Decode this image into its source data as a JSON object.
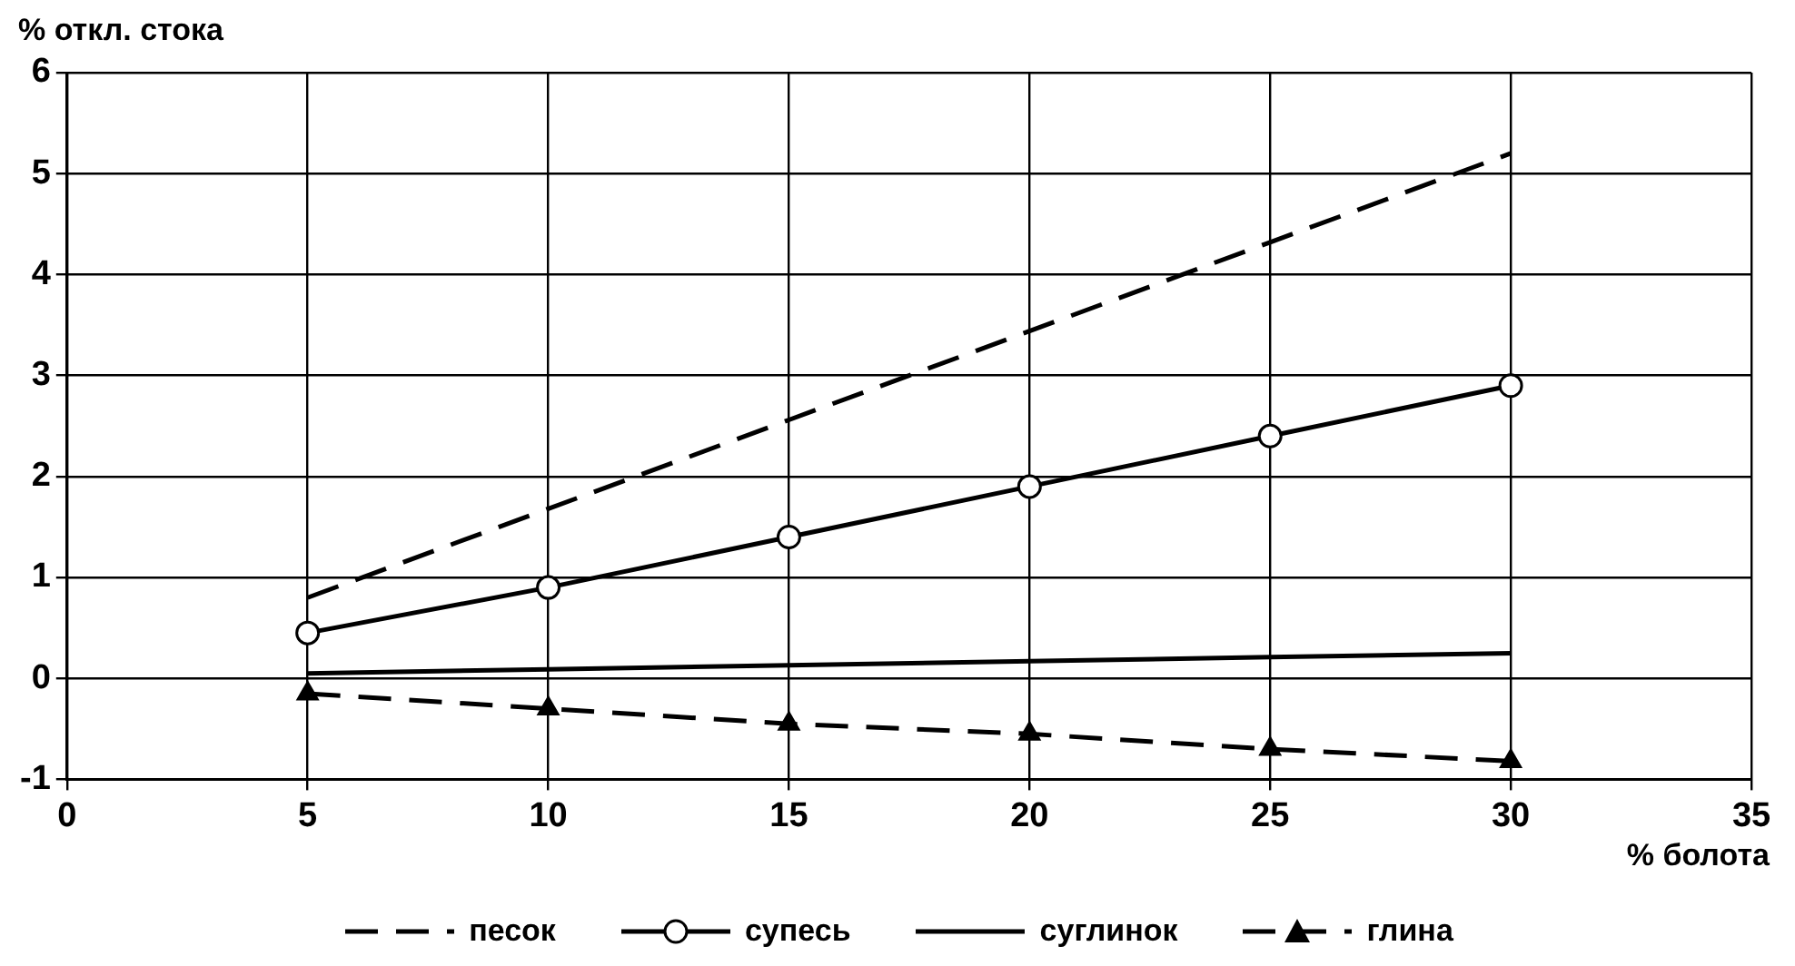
{
  "chart_data": {
    "type": "line",
    "xlabel": "% болота",
    "ylabel": "% откл. стока",
    "x": [
      5,
      10,
      15,
      20,
      25,
      30
    ],
    "xlim": [
      0,
      35
    ],
    "xticks": [
      0,
      5,
      10,
      15,
      20,
      25,
      30,
      35
    ],
    "ylim": [
      -1,
      6
    ],
    "yticks": [
      -1,
      0,
      1,
      2,
      3,
      4,
      5,
      6
    ],
    "grid": true,
    "legend": "bottom",
    "series": [
      {
        "name": "песок",
        "color": "#000000",
        "line_style": "dashed",
        "marker": "none",
        "values": [
          0.8,
          1.68,
          2.56,
          3.44,
          4.32,
          5.2
        ]
      },
      {
        "name": "супесь",
        "color": "#000000",
        "line_style": "solid",
        "marker": "circle",
        "values": [
          0.45,
          0.9,
          1.4,
          1.9,
          2.4,
          2.9
        ]
      },
      {
        "name": "суглинок",
        "color": "#000000",
        "line_style": "solid",
        "marker": "none",
        "values": [
          0.05,
          0.09,
          0.13,
          0.17,
          0.21,
          0.25
        ]
      },
      {
        "name": "глина",
        "color": "#000000",
        "line_style": "dashed",
        "marker": "triangle",
        "values": [
          -0.15,
          -0.3,
          -0.45,
          -0.55,
          -0.7,
          -0.82
        ]
      }
    ]
  }
}
